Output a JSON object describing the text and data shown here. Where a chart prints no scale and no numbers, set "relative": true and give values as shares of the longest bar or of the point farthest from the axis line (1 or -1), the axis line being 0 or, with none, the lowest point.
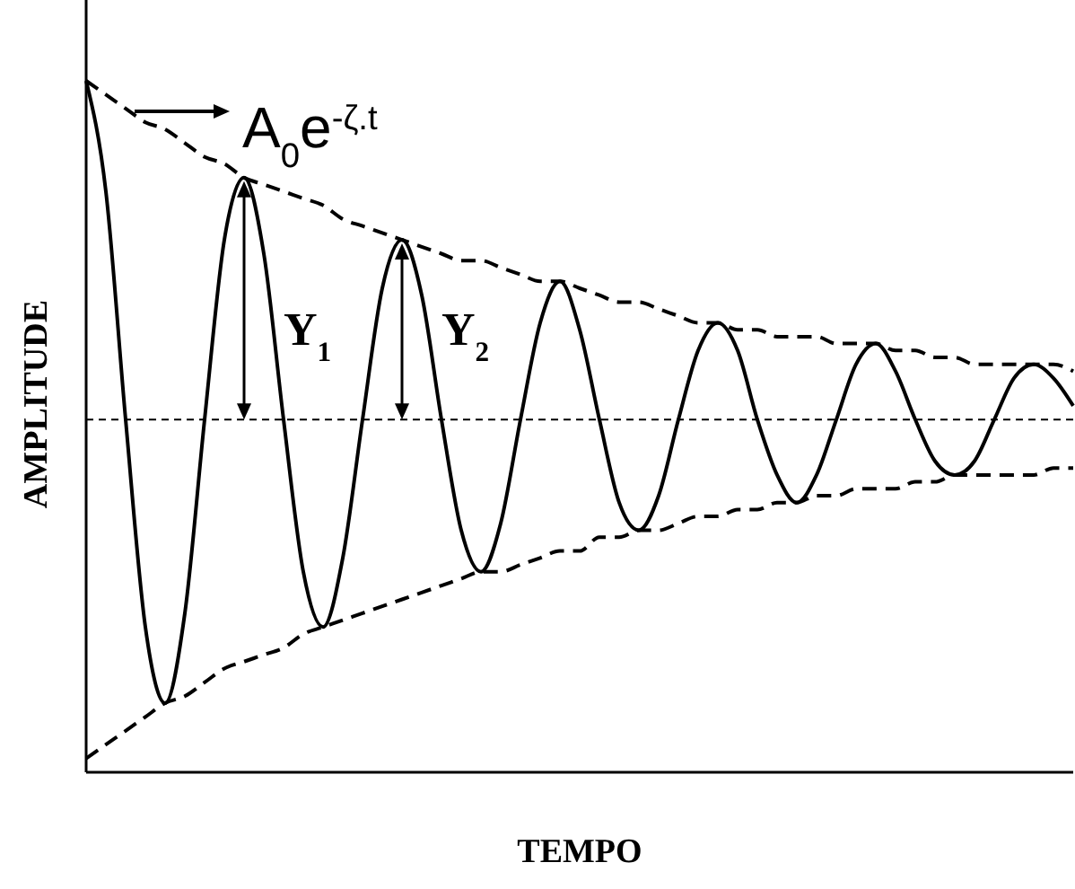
{
  "chart_data": {
    "type": "line",
    "relative": true,
    "xlabel": "TEMPO",
    "ylabel": "AMPLITUDE",
    "categories": [
      null,
      null,
      null,
      null,
      null,
      null,
      null,
      null,
      null,
      null,
      null,
      null,
      null,
      null,
      null,
      null,
      null,
      null,
      null,
      null,
      null,
      null,
      null,
      null,
      null,
      null,
      null,
      null,
      null,
      null,
      null,
      null,
      null,
      null,
      null,
      null,
      null,
      null,
      null,
      null,
      null,
      null,
      null,
      null,
      null,
      null,
      null,
      null,
      null,
      null,
      null
    ],
    "series": [
      {
        "color": "#000000",
        "line_style": "solid",
        "values": [
          1.0,
          0.84,
          0.51,
          0.21,
          0.1,
          0.23,
          0.51,
          0.77,
          0.86,
          0.75,
          0.51,
          0.29,
          0.21,
          0.31,
          0.51,
          0.7,
          0.77,
          0.69,
          0.51,
          0.35,
          0.29,
          0.36,
          0.51,
          0.65,
          0.71,
          0.64,
          0.51,
          0.39,
          0.35,
          0.4,
          0.51,
          0.61,
          0.65,
          0.61,
          0.51,
          0.43,
          0.39,
          0.43,
          0.51,
          0.59,
          0.62,
          0.58,
          0.51,
          0.45,
          0.43,
          0.45,
          0.51,
          0.57,
          0.59,
          0.57,
          0.53
        ]
      },
      {
        "color": "#000000",
        "line_style": "dashed",
        "values": [
          1.0,
          0.98,
          0.96,
          0.94,
          0.93,
          0.91,
          0.89,
          0.88,
          0.86,
          0.85,
          0.84,
          0.83,
          0.82,
          0.8,
          0.79,
          0.78,
          0.77,
          0.76,
          0.75,
          0.74,
          0.74,
          0.73,
          0.72,
          0.71,
          0.71,
          0.7,
          0.69,
          0.68,
          0.68,
          0.67,
          0.66,
          0.65,
          0.65,
          0.64,
          0.64,
          0.63,
          0.63,
          0.63,
          0.62,
          0.62,
          0.62,
          0.61,
          0.61,
          0.6,
          0.6,
          0.59,
          0.59,
          0.59,
          0.59,
          0.59,
          0.58
        ]
      },
      {
        "color": "#000000",
        "line_style": "dashed",
        "values": [
          0.02,
          0.04,
          0.06,
          0.08,
          0.1,
          0.11,
          0.13,
          0.15,
          0.16,
          0.17,
          0.18,
          0.2,
          0.21,
          0.22,
          0.23,
          0.24,
          0.25,
          0.26,
          0.27,
          0.28,
          0.29,
          0.29,
          0.3,
          0.31,
          0.32,
          0.32,
          0.34,
          0.34,
          0.35,
          0.35,
          0.36,
          0.37,
          0.37,
          0.38,
          0.38,
          0.39,
          0.39,
          0.4,
          0.4,
          0.41,
          0.41,
          0.41,
          0.42,
          0.42,
          0.43,
          0.43,
          0.43,
          0.43,
          0.43,
          0.44,
          0.44
        ]
      }
    ],
    "ref_lines": [
      {
        "axis": "y",
        "value": 0.51,
        "line_style": "dashed",
        "color": "#000000"
      }
    ],
    "annotations": [
      "A$_{0}$e$^{-ζ.t}$",
      "Y$_{1}$",
      "Y$_{2}$"
    ]
  }
}
